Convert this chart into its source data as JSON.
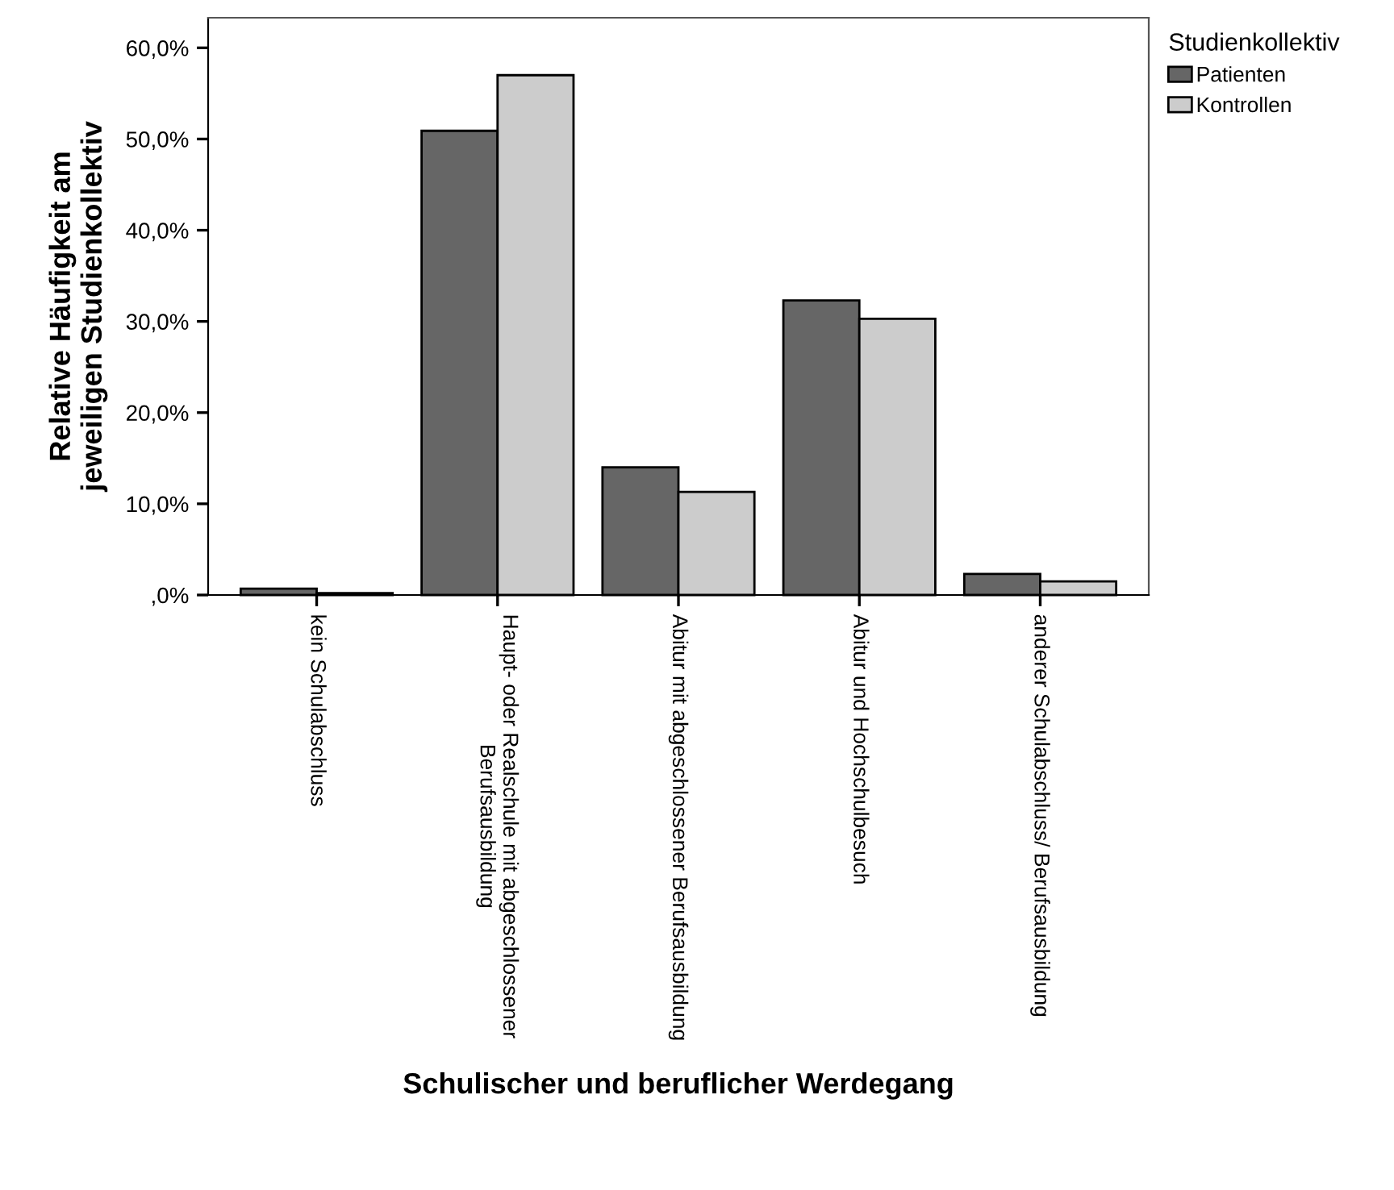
{
  "chart_data": {
    "type": "bar",
    "xlabel": "Schulischer und beruflicher Werdegang",
    "ylabel": "Relative Häufigkeit am\njeweiligen Studienkollektiv",
    "legend_title": "Studienkollektiv",
    "categories": [
      "kein Schulabschluss",
      "Haupt- oder Realschule mit abgeschlossener\nBerufsausbildung",
      "Abitur mit abgeschlossener Berufsausbildung",
      "Abitur und Hochschulbesuch",
      "anderer Schulabschluss/ Berufsausbildung"
    ],
    "series": [
      {
        "name": "Patienten",
        "color": "#666666",
        "values": [
          0.7,
          50.9,
          14.0,
          32.3,
          2.3
        ]
      },
      {
        "name": "Kontrollen",
        "color": "#cccccc",
        "values": [
          0.2,
          57.0,
          11.3,
          30.3,
          1.5
        ]
      }
    ],
    "ylim": [
      0,
      63.3
    ],
    "yticks": [
      {
        "value": 0,
        "label": ",0%"
      },
      {
        "value": 10,
        "label": "10,0%"
      },
      {
        "value": 20,
        "label": "20,0%"
      },
      {
        "value": 30,
        "label": "30,0%"
      },
      {
        "value": 40,
        "label": "40,0%"
      },
      {
        "value": 50,
        "label": "50,0%"
      },
      {
        "value": 60,
        "label": "60,0%"
      }
    ],
    "grid": false,
    "legend": "top right"
  }
}
